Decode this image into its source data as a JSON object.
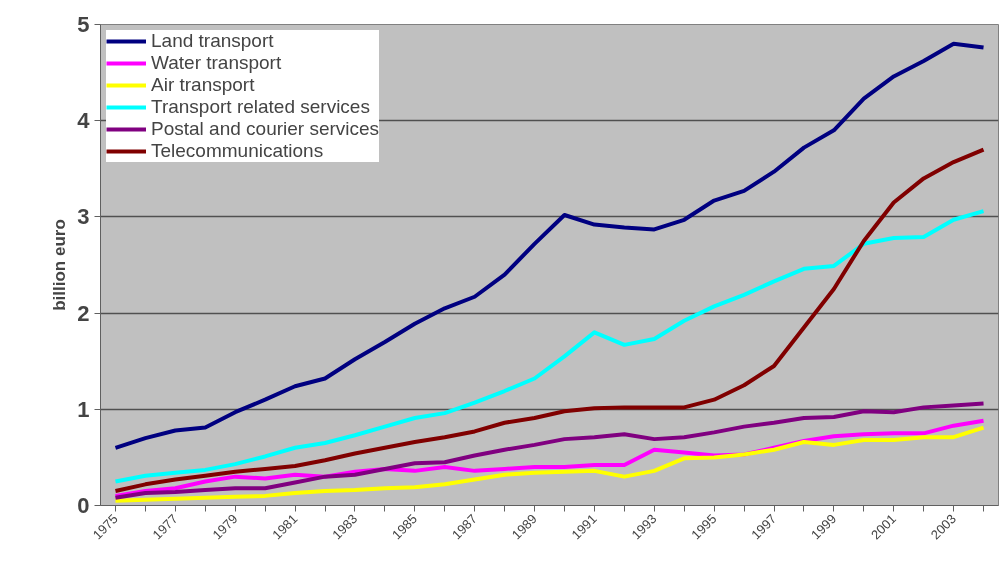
{
  "chart_data": {
    "type": "line",
    "ylabel": "billion euro",
    "categories": [
      "1975",
      null,
      "1977",
      null,
      "1979",
      null,
      "1981",
      null,
      "1983",
      null,
      "1985",
      null,
      "1987",
      null,
      "1989",
      null,
      "1991",
      null,
      "1993",
      null,
      "1995",
      null,
      "1997",
      null,
      "1999",
      null,
      "2001",
      null,
      "2003",
      null
    ],
    "ylim": [
      0,
      5
    ],
    "yticks": [
      0,
      1,
      2,
      3,
      4,
      5
    ],
    "grid": "y",
    "legend": "top left",
    "series": [
      {
        "name": "Land transport",
        "color": "#000080",
        "values": [
          0.6,
          0.7,
          0.78,
          0.81,
          0.97,
          1.1,
          1.24,
          1.32,
          1.52,
          1.7,
          1.89,
          2.05,
          2.17,
          2.4,
          2.72,
          3.02,
          2.92,
          2.89,
          2.87,
          2.97,
          3.17,
          3.27,
          3.47,
          3.72,
          3.9,
          4.23,
          4.46,
          4.62,
          4.8,
          4.76
        ]
      },
      {
        "name": "Water transport",
        "color": "#ff00ff",
        "values": [
          0.1,
          0.15,
          0.18,
          0.25,
          0.3,
          0.28,
          0.32,
          0.3,
          0.35,
          0.38,
          0.36,
          0.4,
          0.36,
          0.38,
          0.4,
          0.4,
          0.42,
          0.42,
          0.58,
          0.55,
          0.52,
          0.53,
          0.6,
          0.67,
          0.72,
          0.74,
          0.75,
          0.75,
          0.83,
          0.88
        ]
      },
      {
        "name": "Air transport",
        "color": "#ffff00",
        "values": [
          0.05,
          0.06,
          0.07,
          0.08,
          0.09,
          0.1,
          0.13,
          0.15,
          0.16,
          0.18,
          0.19,
          0.22,
          0.27,
          0.32,
          0.34,
          0.35,
          0.36,
          0.3,
          0.36,
          0.49,
          0.5,
          0.53,
          0.58,
          0.66,
          0.63,
          0.68,
          0.68,
          0.71,
          0.71,
          0.81
        ]
      },
      {
        "name": "Transport related services",
        "color": "#00ffff",
        "values": [
          0.25,
          0.31,
          0.34,
          0.37,
          0.43,
          0.51,
          0.6,
          0.65,
          0.73,
          0.82,
          0.91,
          0.96,
          1.07,
          1.19,
          1.32,
          1.55,
          1.8,
          1.67,
          1.73,
          1.92,
          2.07,
          2.19,
          2.33,
          2.46,
          2.49,
          2.72,
          2.78,
          2.79,
          2.97,
          3.06
        ]
      },
      {
        "name": "Postal and courier services",
        "color": "#800080",
        "values": [
          0.08,
          0.13,
          0.14,
          0.16,
          0.18,
          0.18,
          0.24,
          0.3,
          0.32,
          0.38,
          0.44,
          0.45,
          0.52,
          0.58,
          0.63,
          0.69,
          0.71,
          0.74,
          0.69,
          0.71,
          0.76,
          0.82,
          0.86,
          0.91,
          0.92,
          0.98,
          0.97,
          1.02,
          1.04,
          1.06
        ]
      },
      {
        "name": "Telecommunications",
        "color": "#800000",
        "values": [
          0.15,
          0.22,
          0.27,
          0.31,
          0.35,
          0.38,
          0.41,
          0.47,
          0.54,
          0.6,
          0.66,
          0.71,
          0.77,
          0.86,
          0.91,
          0.98,
          1.01,
          1.02,
          1.02,
          1.02,
          1.1,
          1.25,
          1.45,
          1.85,
          2.25,
          2.75,
          3.15,
          3.4,
          3.57,
          3.7
        ]
      }
    ]
  }
}
